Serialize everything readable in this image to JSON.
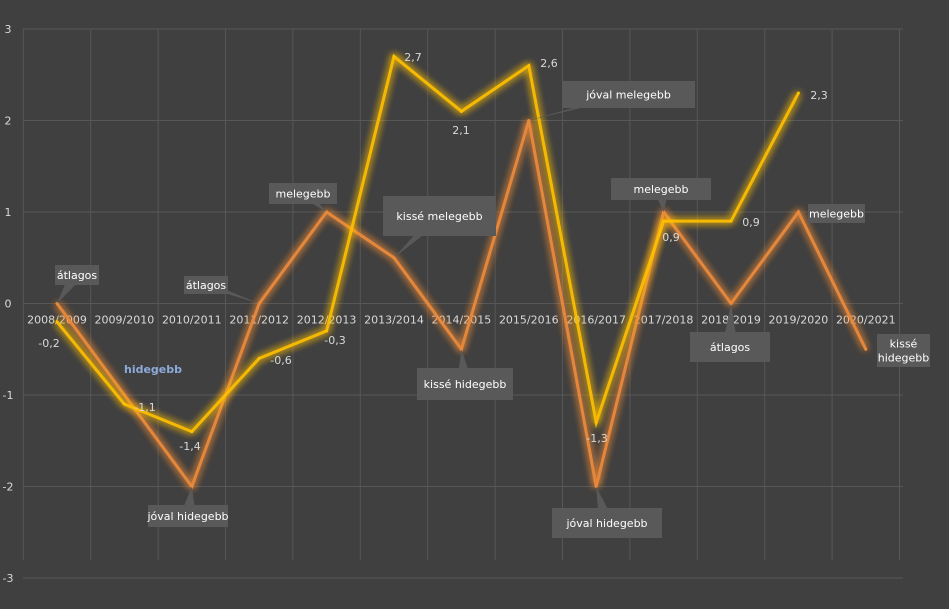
{
  "chart_data": {
    "type": "line",
    "categories": [
      "2008/2009",
      "2009/2010",
      "2010/2011",
      "2011/2012",
      "2012/2013",
      "2013/2014",
      "2014/2015",
      "2015/2016",
      "2016/2017",
      "2017/2018",
      "2018/2019",
      "2019/2020",
      "2020/2021"
    ],
    "ylim": [
      -3,
      3
    ],
    "yticks": [
      "3",
      "2",
      "1",
      "0",
      "-1",
      "-2",
      "-3"
    ],
    "grid": true,
    "legend": "none",
    "series": [
      {
        "color": "#ed8b3a",
        "values": [
          0,
          -1,
          -2,
          0,
          1,
          0.5,
          -0.5,
          2,
          -2,
          1,
          0,
          1,
          -0.5
        ],
        "point_labels": [
          "átlagos",
          "hidegebb",
          "jóval hidegebb",
          "átlagos",
          "melegebb",
          "kissé melegebb",
          "kissé hidegebb",
          "jóval melegebb",
          "jóval hidegebb",
          "melegebb",
          "átlagos",
          "melegebb",
          "kissé hidegebb"
        ]
      },
      {
        "color": "#ffc000",
        "values": [
          -0.2,
          -1.1,
          -1.4,
          -0.6,
          -0.3,
          2.7,
          2.1,
          2.6,
          -1.3,
          0.9,
          0.9,
          2.3,
          null
        ],
        "data_labels": [
          "-0,2",
          "-1,1",
          "-1,4",
          "-0,6",
          "-0,3",
          "2,7",
          "2,1",
          "2,6",
          "-1,3",
          "0,9",
          "0,9",
          "2,3",
          ""
        ]
      }
    ],
    "label_colors": {
      "callout_box": "#595959",
      "callout_text": "#ffffff",
      "plain_label": "#8eaadb"
    }
  }
}
